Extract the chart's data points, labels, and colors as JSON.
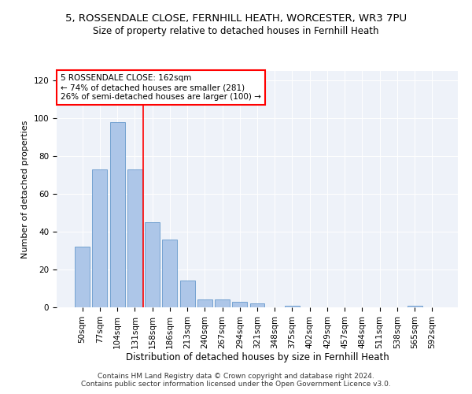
{
  "title1": "5, ROSSENDALE CLOSE, FERNHILL HEATH, WORCESTER, WR3 7PU",
  "title2": "Size of property relative to detached houses in Fernhill Heath",
  "xlabel": "Distribution of detached houses by size in Fernhill Heath",
  "ylabel": "Number of detached properties",
  "bar_labels": [
    "50sqm",
    "77sqm",
    "104sqm",
    "131sqm",
    "158sqm",
    "186sqm",
    "213sqm",
    "240sqm",
    "267sqm",
    "294sqm",
    "321sqm",
    "348sqm",
    "375sqm",
    "402sqm",
    "429sqm",
    "457sqm",
    "484sqm",
    "511sqm",
    "538sqm",
    "565sqm",
    "592sqm"
  ],
  "bar_values": [
    32,
    73,
    98,
    73,
    45,
    36,
    14,
    4,
    4,
    3,
    2,
    0,
    1,
    0,
    0,
    0,
    0,
    0,
    0,
    1,
    0
  ],
  "bar_color": "#adc6e8",
  "bar_edge_color": "#6699cc",
  "vline_x": 4.0,
  "annotation_text": "5 ROSSENDALE CLOSE: 162sqm\n← 74% of detached houses are smaller (281)\n26% of semi-detached houses are larger (100) →",
  "annotation_box_color": "white",
  "annotation_box_edge_color": "red",
  "vline_color": "red",
  "ylim": [
    0,
    125
  ],
  "yticks": [
    0,
    20,
    40,
    60,
    80,
    100,
    120
  ],
  "footer": "Contains HM Land Registry data © Crown copyright and database right 2024.\nContains public sector information licensed under the Open Government Licence v3.0.",
  "bg_color": "#eef2f9",
  "title1_fontsize": 9.5,
  "title2_fontsize": 8.5,
  "xlabel_fontsize": 8.5,
  "ylabel_fontsize": 8,
  "tick_fontsize": 7.5,
  "annot_fontsize": 7.5,
  "footer_fontsize": 6.5
}
